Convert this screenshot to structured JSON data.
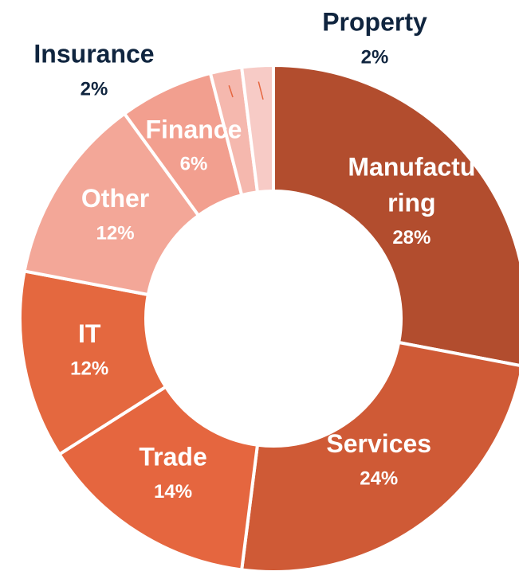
{
  "chart_data": {
    "type": "donut",
    "categories": [
      "Manufacturing",
      "Services",
      "Trade",
      "IT",
      "Other",
      "Finance",
      "Insurance",
      "Property"
    ],
    "values": [
      28,
      24,
      14,
      12,
      12,
      6,
      2,
      2
    ],
    "value_labels": [
      "28%",
      "24%",
      "14%",
      "12%",
      "12%",
      "6%",
      "2%",
      "2%"
    ],
    "colors": [
      "#b24d2e",
      "#cf5a36",
      "#e5663f",
      "#e4683f",
      "#f3a798",
      "#f29f8f",
      "#f5b8ae",
      "#f7cbc6"
    ]
  }
}
